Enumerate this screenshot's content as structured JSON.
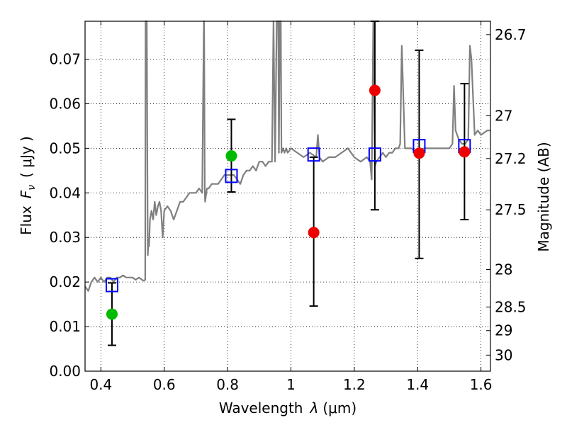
{
  "chart_data": {
    "type": "scatter",
    "xlabel_text": "Wavelength",
    "xlabel_symbol": "λ",
    "xlabel_unit": "(μm)",
    "ylabel_text": "Flux",
    "ylabel_symbol": "F",
    "ylabel_subscript": "ν",
    "ylabel_unit": "( μJy )",
    "y2label": "Magnitude (AB)",
    "xlim": [
      0.35,
      1.63
    ],
    "ylim": [
      0.0,
      0.0785
    ],
    "grid": true,
    "x_ticks": [
      0.4,
      0.6,
      0.8,
      1.0,
      1.2,
      1.4,
      1.6
    ],
    "x_tick_labels": [
      "0.4",
      "0.6",
      "0.8",
      "1",
      "1.2",
      "1.4",
      "1.6"
    ],
    "y_ticks": [
      0.0,
      0.01,
      0.02,
      0.03,
      0.04,
      0.05,
      0.06,
      0.07
    ],
    "y_tick_labels": [
      "0.00",
      "0.01",
      "0.02",
      "0.03",
      "0.04",
      "0.05",
      "0.06",
      "0.07"
    ],
    "y2_ticks": [
      {
        "label": "26.7",
        "flux": 0.0755
      },
      {
        "label": "27",
        "flux": 0.0573
      },
      {
        "label": "27.2",
        "flux": 0.0477
      },
      {
        "label": "27.5",
        "flux": 0.0362
      },
      {
        "label": "28",
        "flux": 0.0228
      },
      {
        "label": "28.5",
        "flux": 0.0144
      },
      {
        "label": "29",
        "flux": 0.0091
      },
      {
        "label": "30",
        "flux": 0.0036
      }
    ],
    "series": [
      {
        "kind": "model-spectrum",
        "color": "#808080",
        "x": [
          0.35,
          0.36,
          0.37,
          0.38,
          0.39,
          0.4,
          0.41,
          0.42,
          0.43,
          0.44,
          0.45,
          0.46,
          0.47,
          0.48,
          0.49,
          0.5,
          0.51,
          0.52,
          0.53,
          0.535,
          0.54,
          0.541,
          0.545,
          0.548,
          0.55,
          0.552,
          0.555,
          0.56,
          0.565,
          0.57,
          0.575,
          0.58,
          0.585,
          0.59,
          0.595,
          0.6,
          0.61,
          0.62,
          0.63,
          0.64,
          0.65,
          0.66,
          0.67,
          0.68,
          0.69,
          0.7,
          0.71,
          0.72,
          0.725,
          0.726,
          0.728,
          0.729,
          0.735,
          0.74,
          0.75,
          0.76,
          0.77,
          0.78,
          0.79,
          0.8,
          0.81,
          0.82,
          0.83,
          0.84,
          0.85,
          0.86,
          0.87,
          0.88,
          0.89,
          0.9,
          0.91,
          0.92,
          0.93,
          0.94,
          0.945,
          0.95,
          0.955,
          0.96,
          0.962,
          0.965,
          0.968,
          0.97,
          0.975,
          0.98,
          0.985,
          0.99,
          1.0,
          1.02,
          1.04,
          1.06,
          1.08,
          1.085,
          1.09,
          1.1,
          1.12,
          1.14,
          1.16,
          1.18,
          1.2,
          1.22,
          1.24,
          1.25,
          1.255,
          1.26,
          1.265,
          1.27,
          1.28,
          1.29,
          1.3,
          1.31,
          1.32,
          1.33,
          1.34,
          1.345,
          1.35,
          1.36,
          1.38,
          1.4,
          1.42,
          1.44,
          1.46,
          1.48,
          1.5,
          1.51,
          1.515,
          1.52,
          1.53,
          1.54,
          1.55,
          1.56,
          1.565,
          1.57,
          1.58,
          1.59,
          1.6,
          1.62,
          1.63
        ],
        "y": [
          0.019,
          0.018,
          0.02,
          0.021,
          0.02,
          0.021,
          0.02,
          0.021,
          0.021,
          0.02,
          0.021,
          0.021,
          0.0215,
          0.021,
          0.021,
          0.021,
          0.0205,
          0.021,
          0.0205,
          0.0203,
          0.0205,
          0.0785,
          0.0785,
          0.026,
          0.029,
          0.028,
          0.034,
          0.036,
          0.034,
          0.038,
          0.035,
          0.037,
          0.038,
          0.036,
          0.03,
          0.036,
          0.037,
          0.036,
          0.034,
          0.036,
          0.038,
          0.038,
          0.039,
          0.04,
          0.04,
          0.04,
          0.041,
          0.04,
          0.0785,
          0.0785,
          0.041,
          0.038,
          0.041,
          0.041,
          0.042,
          0.042,
          0.042,
          0.043,
          0.044,
          0.044,
          0.044,
          0.044,
          0.043,
          0.042,
          0.044,
          0.045,
          0.045,
          0.046,
          0.045,
          0.047,
          0.047,
          0.046,
          0.047,
          0.047,
          0.0785,
          0.047,
          0.0785,
          0.0785,
          0.049,
          0.0785,
          0.0785,
          0.049,
          0.05,
          0.049,
          0.05,
          0.049,
          0.05,
          0.049,
          0.048,
          0.049,
          0.048,
          0.053,
          0.048,
          0.047,
          0.048,
          0.048,
          0.049,
          0.05,
          0.048,
          0.047,
          0.048,
          0.047,
          0.043,
          0.0785,
          0.046,
          0.047,
          0.048,
          0.049,
          0.048,
          0.049,
          0.049,
          0.05,
          0.05,
          0.051,
          0.073,
          0.05,
          0.05,
          0.049,
          0.05,
          0.05,
          0.05,
          0.05,
          0.05,
          0.051,
          0.064,
          0.054,
          0.052,
          0.051,
          0.051,
          0.052,
          0.073,
          0.07,
          0.053,
          0.054,
          0.053,
          0.054,
          0.054
        ]
      },
      {
        "kind": "model-photometry",
        "marker": "open-square",
        "color": "#0000ff",
        "x": [
          0.435,
          0.812,
          1.072,
          1.265,
          1.405,
          1.548
        ],
        "y": [
          0.0193,
          0.0438,
          0.0486,
          0.0486,
          0.0505,
          0.0505
        ]
      },
      {
        "kind": "observed-detections",
        "marker": "filled-circle",
        "color": "#00bb00",
        "x": [
          0.435,
          0.812
        ],
        "y": [
          0.0128,
          0.0483
        ],
        "yerr_low": [
          0.0058,
          0.0402
        ],
        "yerr_high": [
          0.0198,
          0.0565
        ]
      },
      {
        "kind": "observed-detections",
        "marker": "filled-circle",
        "color": "#ee0000",
        "x": [
          1.072,
          1.265,
          1.405,
          1.548
        ],
        "y": [
          0.0311,
          0.063,
          0.0489,
          0.0492
        ],
        "yerr_low": [
          0.0146,
          0.0362,
          0.0253,
          0.034
        ],
        "yerr_high": [
          0.048,
          0.0785,
          0.072,
          0.0645
        ]
      }
    ]
  }
}
